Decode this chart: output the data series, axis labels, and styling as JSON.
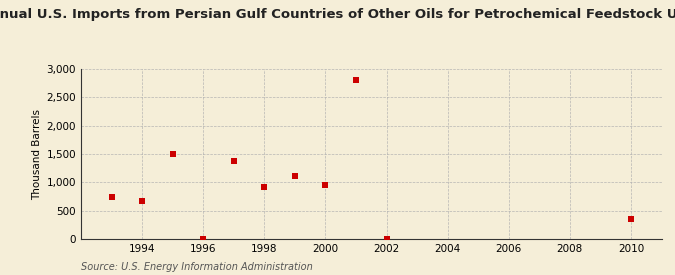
{
  "title": "Annual U.S. Imports from Persian Gulf Countries of Other Oils for Petrochemical Feedstock Use",
  "ylabel": "Thousand Barrels",
  "source": "Source: U.S. Energy Information Administration",
  "years": [
    1993,
    1994,
    1995,
    1996,
    1997,
    1998,
    1999,
    2000,
    2001,
    2002,
    2010
  ],
  "values": [
    750,
    680,
    1500,
    5,
    1380,
    920,
    1120,
    960,
    2800,
    5,
    360
  ],
  "ylim": [
    0,
    3000
  ],
  "xlim": [
    1992.0,
    2011.0
  ],
  "xticks": [
    1994,
    1996,
    1998,
    2000,
    2002,
    2004,
    2006,
    2008,
    2010
  ],
  "yticks": [
    0,
    500,
    1000,
    1500,
    2000,
    2500,
    3000
  ],
  "marker_color": "#cc0000",
  "marker": "s",
  "marker_size": 4,
  "bg_color": "#f5eed8",
  "grid_color": "#b0b0b0",
  "title_fontsize": 9.5,
  "label_fontsize": 7.5,
  "tick_fontsize": 7.5,
  "source_fontsize": 7
}
